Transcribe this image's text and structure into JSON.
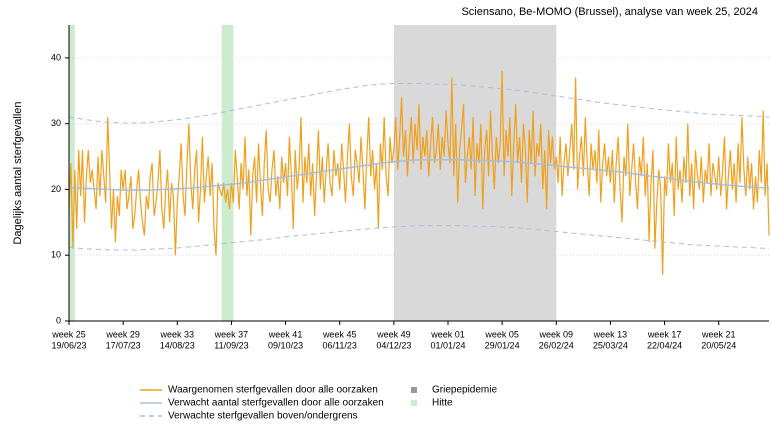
{
  "chart_data": {
    "type": "line",
    "title": "Sciensano, Be-MOMO (Brussel), analyse van week 25, 2024",
    "y_label": "Dagelijks aantal sterfgevallen",
    "xlim": [
      0,
      362
    ],
    "ylim": [
      0,
      45
    ],
    "yticks": [
      0,
      10,
      20,
      30,
      40
    ],
    "grid": true,
    "xticks": [
      {
        "value": 0,
        "label": "week 25",
        "date": "19/06/23"
      },
      {
        "value": 28,
        "label": "week 29",
        "date": "17/07/23"
      },
      {
        "value": 56,
        "label": "week 33",
        "date": "14/08/23"
      },
      {
        "value": 84,
        "label": "week 37",
        "date": "11/09/23"
      },
      {
        "value": 112,
        "label": "week 41",
        "date": "09/10/23"
      },
      {
        "value": 140,
        "label": "week 45",
        "date": "06/11/23"
      },
      {
        "value": 168,
        "label": "week 49",
        "date": "04/12/23"
      },
      {
        "value": 196,
        "label": "week 01",
        "date": "01/01/24"
      },
      {
        "value": 224,
        "label": "week 05",
        "date": "29/01/24"
      },
      {
        "value": 252,
        "label": "week 09",
        "date": "26/02/24"
      },
      {
        "value": 280,
        "label": "week 13",
        "date": "25/03/24"
      },
      {
        "value": 308,
        "label": "week 17",
        "date": "22/04/24"
      },
      {
        "value": 336,
        "label": "week 21",
        "date": "20/05/24"
      }
    ],
    "shaded": [
      {
        "name": "Griepepidemie",
        "color": "#d9d9d9",
        "ranges": [
          [
            168,
            252
          ]
        ]
      },
      {
        "name": "Hitte",
        "color": "#cdeccd",
        "ranges": [
          [
            0,
            3
          ],
          [
            79,
            85
          ]
        ]
      }
    ],
    "series": [
      {
        "name": "Waargenomen sterfgevallen door alle oorzaken",
        "color": "#f0a01e",
        "style": "solid",
        "x": [
          0,
          1,
          2,
          3,
          4,
          5,
          6,
          7,
          8,
          9,
          10,
          11,
          12,
          13,
          14,
          15,
          16,
          17,
          18,
          19,
          20,
          21,
          22,
          23,
          24,
          25,
          26,
          27,
          28,
          29,
          30,
          31,
          32,
          33,
          34,
          35,
          36,
          37,
          38,
          39,
          40,
          41,
          42,
          43,
          44,
          45,
          46,
          47,
          48,
          49,
          50,
          51,
          52,
          53,
          54,
          55,
          56,
          57,
          58,
          59,
          60,
          61,
          62,
          63,
          64,
          65,
          66,
          67,
          68,
          69,
          70,
          71,
          72,
          73,
          74,
          75,
          76,
          77,
          78,
          79,
          80,
          81,
          82,
          83,
          84,
          85,
          86,
          87,
          88,
          89,
          90,
          91,
          92,
          93,
          94,
          95,
          96,
          97,
          98,
          99,
          100,
          101,
          102,
          103,
          104,
          105,
          106,
          107,
          108,
          109,
          110,
          111,
          112,
          113,
          114,
          115,
          116,
          117,
          118,
          119,
          120,
          121,
          122,
          123,
          124,
          125,
          126,
          127,
          128,
          129,
          130,
          131,
          132,
          133,
          134,
          135,
          136,
          137,
          138,
          139,
          140,
          141,
          142,
          143,
          144,
          145,
          146,
          147,
          148,
          149,
          150,
          151,
          152,
          153,
          154,
          155,
          156,
          157,
          158,
          159,
          160,
          161,
          162,
          163,
          164,
          165,
          166,
          167,
          168,
          169,
          170,
          171,
          172,
          173,
          174,
          175,
          176,
          177,
          178,
          179,
          180,
          181,
          182,
          183,
          184,
          185,
          186,
          187,
          188,
          189,
          190,
          191,
          192,
          193,
          194,
          195,
          196,
          197,
          198,
          199,
          200,
          201,
          202,
          203,
          204,
          205,
          206,
          207,
          208,
          209,
          210,
          211,
          212,
          213,
          214,
          215,
          216,
          217,
          218,
          219,
          220,
          221,
          222,
          223,
          224,
          225,
          226,
          227,
          228,
          229,
          230,
          231,
          232,
          233,
          234,
          235,
          236,
          237,
          238,
          239,
          240,
          241,
          242,
          243,
          244,
          245,
          246,
          247,
          248,
          249,
          250,
          251,
          252,
          253,
          254,
          255,
          256,
          257,
          258,
          259,
          260,
          261,
          262,
          263,
          264,
          265,
          266,
          267,
          268,
          269,
          270,
          271,
          272,
          273,
          274,
          275,
          276,
          277,
          278,
          279,
          280,
          281,
          282,
          283,
          284,
          285,
          286,
          287,
          288,
          289,
          290,
          291,
          292,
          293,
          294,
          295,
          296,
          297,
          298,
          299,
          300,
          301,
          302,
          303,
          304,
          305,
          306,
          307,
          308,
          309,
          310,
          311,
          312,
          313,
          314,
          315,
          316,
          317,
          318,
          319,
          320,
          321,
          322,
          323,
          324,
          325,
          326,
          327,
          328,
          329,
          330,
          331,
          332,
          333,
          334,
          335,
          336,
          337,
          338,
          339,
          340,
          341,
          342,
          343,
          344,
          345,
          346,
          347,
          348,
          349,
          350,
          351,
          352,
          353,
          354,
          355,
          356,
          357,
          358,
          359,
          360,
          361,
          362
        ],
        "values": [
          17,
          24,
          11,
          23,
          14,
          26,
          19,
          26,
          15,
          22,
          26,
          21,
          23,
          20,
          17,
          25,
          19,
          26,
          22,
          18,
          31,
          23,
          14,
          20,
          12,
          19,
          16,
          23,
          20,
          23,
          17,
          19,
          22,
          14,
          16,
          20,
          23,
          18,
          15,
          13,
          19,
          17,
          22,
          24,
          16,
          18,
          21,
          26,
          17,
          14,
          20,
          23,
          15,
          21,
          19,
          10,
          18,
          22,
          27,
          19,
          16,
          24,
          30,
          21,
          17,
          23,
          26,
          15,
          20,
          28,
          18,
          22,
          25,
          19,
          24,
          14,
          10,
          21,
          20,
          19,
          21,
          18,
          20,
          17,
          21,
          18,
          26,
          22,
          17,
          24,
          20,
          28,
          19,
          23,
          13,
          22,
          25,
          18,
          27,
          21,
          16,
          24,
          29,
          20,
          18,
          23,
          26,
          19,
          22,
          17,
          25,
          21,
          24,
          19,
          28,
          22,
          14,
          26,
          20,
          23,
          31,
          18,
          25,
          21,
          27,
          19,
          24,
          16,
          22,
          29,
          20,
          25,
          18,
          23,
          27,
          21,
          19,
          26,
          22,
          24,
          20,
          27,
          23,
          18,
          25,
          30,
          22,
          19,
          26,
          24,
          21,
          28,
          23,
          17,
          25,
          31,
          22,
          26,
          20,
          24,
          14,
          27,
          23,
          31,
          22,
          19,
          28,
          24,
          26,
          31,
          23,
          28,
          34,
          25,
          29,
          22,
          27,
          31,
          24,
          30,
          26,
          33,
          23,
          28,
          25,
          29,
          22,
          27,
          31,
          24,
          26,
          30,
          23,
          28,
          25,
          32,
          27,
          24,
          37,
          22,
          30,
          18,
          26,
          29,
          33,
          21,
          25,
          28,
          23,
          31,
          19,
          27,
          24,
          30,
          17,
          26,
          29,
          22,
          32,
          25,
          20,
          28,
          24,
          27,
          38,
          22,
          29,
          25,
          31,
          19,
          27,
          33,
          24,
          28,
          21,
          30,
          26,
          18,
          29,
          24,
          32,
          22,
          27,
          25,
          30,
          20,
          26,
          17,
          29,
          24,
          28,
          23,
          25,
          21,
          28,
          19,
          24,
          27,
          22,
          26,
          30,
          23,
          37,
          20,
          25,
          28,
          22,
          31,
          24,
          19,
          27,
          23,
          26,
          21,
          29,
          18,
          24,
          27,
          22,
          25,
          21,
          26,
          18,
          24,
          28,
          20,
          15,
          25,
          22,
          30,
          19,
          23,
          27,
          21,
          17,
          25,
          22,
          28,
          19,
          24,
          12,
          21,
          26,
          11,
          18,
          23,
          20,
          7,
          22,
          19,
          27,
          21,
          24,
          16,
          28,
          20,
          23,
          18,
          25,
          21,
          30,
          19,
          24,
          17,
          26,
          22,
          20,
          25,
          18,
          23,
          21,
          27,
          19,
          24,
          22,
          20,
          25,
          19,
          23,
          28,
          17,
          22,
          26,
          20,
          24,
          18,
          27,
          21,
          31,
          23,
          19,
          25,
          20,
          24,
          17,
          22,
          18,
          26,
          21,
          32,
          19,
          24,
          13
        ]
      },
      {
        "name": "Verwacht aantal sterfgevallen door alle oorzaken",
        "color": "#a9bde0",
        "style": "solid",
        "x": [
          0,
          7,
          14,
          21,
          28,
          35,
          42,
          49,
          56,
          63,
          70,
          77,
          84,
          91,
          98,
          105,
          112,
          119,
          126,
          133,
          140,
          147,
          154,
          161,
          168,
          175,
          182,
          189,
          196,
          203,
          210,
          217,
          224,
          231,
          238,
          245,
          252,
          259,
          266,
          273,
          280,
          287,
          294,
          301,
          308,
          315,
          322,
          329,
          336,
          343,
          350,
          357,
          362
        ],
        "values": [
          20.3,
          20.2,
          20.1,
          20.0,
          19.9,
          19.9,
          19.9,
          20.0,
          20.1,
          20.2,
          20.4,
          20.6,
          20.8,
          21.0,
          21.3,
          21.6,
          21.9,
          22.2,
          22.5,
          22.8,
          23.1,
          23.4,
          23.7,
          24.0,
          24.2,
          24.4,
          24.5,
          24.5,
          24.5,
          24.5,
          24.4,
          24.4,
          24.3,
          24.2,
          24.0,
          23.8,
          23.6,
          23.4,
          23.2,
          23.0,
          22.8,
          22.6,
          22.3,
          22.0,
          21.8,
          21.5,
          21.2,
          21.0,
          20.8,
          20.6,
          20.4,
          20.3,
          20.2
        ]
      },
      {
        "name": "Verwachte sterfgevallen boven/ondergrens",
        "color": "#a9bde0",
        "style": "dashed",
        "x": [
          0,
          7,
          14,
          21,
          28,
          35,
          42,
          49,
          56,
          63,
          70,
          77,
          84,
          91,
          98,
          105,
          112,
          119,
          126,
          133,
          140,
          147,
          154,
          161,
          168,
          175,
          182,
          189,
          196,
          203,
          210,
          217,
          224,
          231,
          238,
          245,
          252,
          259,
          266,
          273,
          280,
          287,
          294,
          301,
          308,
          315,
          322,
          329,
          336,
          343,
          350,
          357,
          362
        ],
        "upper": [
          31.0,
          30.7,
          30.4,
          30.2,
          30.1,
          30.1,
          30.2,
          30.4,
          30.6,
          30.9,
          31.2,
          31.6,
          32.0,
          32.4,
          32.8,
          33.2,
          33.6,
          34.0,
          34.4,
          34.8,
          35.2,
          35.5,
          35.8,
          36.0,
          36.1,
          36.1,
          36.1,
          36.0,
          36.0,
          35.9,
          35.7,
          35.5,
          35.3,
          35.1,
          34.8,
          34.5,
          34.2,
          33.9,
          33.6,
          33.3,
          33.0,
          32.8,
          32.5,
          32.3,
          32.1,
          31.9,
          31.7,
          31.5,
          31.4,
          31.3,
          31.2,
          31.1,
          31.0
        ],
        "lower": [
          11.2,
          11.0,
          10.9,
          10.8,
          10.8,
          10.8,
          10.9,
          11.0,
          11.1,
          11.3,
          11.5,
          11.7,
          11.9,
          12.1,
          12.3,
          12.5,
          12.8,
          13.0,
          13.2,
          13.4,
          13.6,
          13.8,
          14.0,
          14.2,
          14.3,
          14.4,
          14.5,
          14.5,
          14.5,
          14.5,
          14.4,
          14.4,
          14.3,
          14.2,
          14.0,
          13.8,
          13.6,
          13.4,
          13.2,
          13.0,
          12.8,
          12.6,
          12.4,
          12.2,
          12.0,
          11.8,
          11.6,
          11.5,
          11.4,
          11.3,
          11.2,
          11.1,
          11.0
        ]
      }
    ]
  }
}
